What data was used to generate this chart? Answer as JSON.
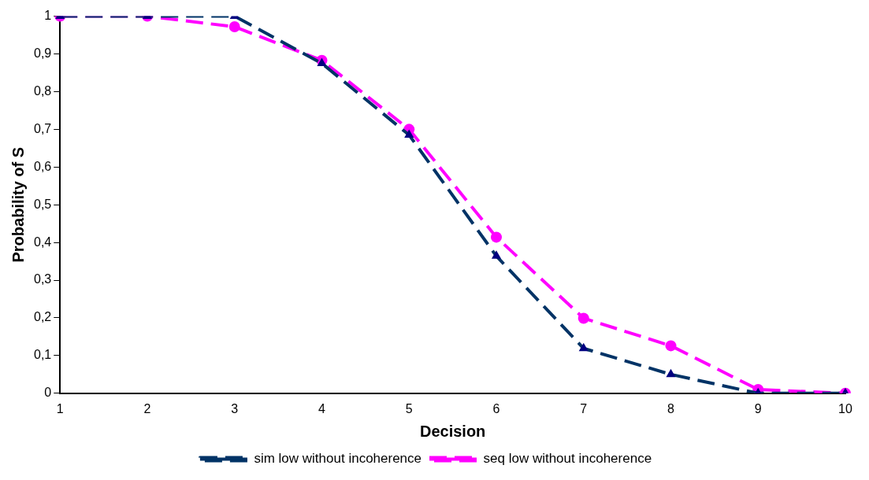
{
  "chart_data": {
    "type": "line",
    "xlabel": "Decision",
    "ylabel": "Probability of S",
    "categories": [
      "1",
      "2",
      "3",
      "4",
      "5",
      "6",
      "7",
      "8",
      "9",
      "10"
    ],
    "ylim": [
      0,
      1
    ],
    "yticks": [
      0,
      {
        "value": 0.1,
        "label": "0,1"
      },
      {
        "value": 0.2,
        "label": "0,2"
      },
      {
        "value": 0.3,
        "label": "0,3"
      },
      {
        "value": 0.4,
        "label": "0,4"
      },
      {
        "value": 0.5,
        "label": "0,5"
      },
      {
        "value": 0.6,
        "label": "0,6"
      },
      {
        "value": 0.7,
        "label": "0,7"
      },
      {
        "value": 0.8,
        "label": "0,8"
      },
      {
        "value": 0.9,
        "label": "0,9"
      },
      1
    ],
    "grid": false,
    "legend": "bottom",
    "line_style": "dashed",
    "series": [
      {
        "name": "sim low without incoherence",
        "color": "#003366",
        "marker": "triangle",
        "values": [
          1,
          1,
          1,
          0.875,
          0.685,
          0.364,
          0.119,
          0.05,
          0,
          0
        ]
      },
      {
        "name": "seq low without incoherence",
        "color": "#ff00ff",
        "marker": "circle",
        "values": [
          1,
          1,
          0.972,
          0.883,
          0.7,
          0.414,
          0.199,
          0.126,
          0.01,
          0
        ]
      }
    ]
  }
}
